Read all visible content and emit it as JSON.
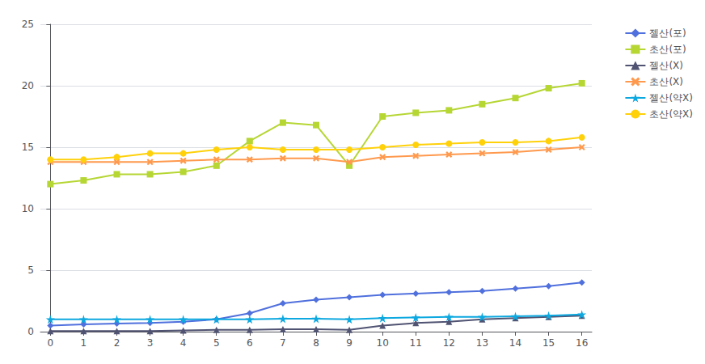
{
  "chart_data": {
    "type": "line",
    "x": [
      0,
      1,
      2,
      3,
      4,
      5,
      6,
      7,
      8,
      9,
      10,
      11,
      12,
      13,
      14,
      15,
      16
    ],
    "series": [
      {
        "name": "젤산(포)",
        "marker": "diamond",
        "values": [
          0.5,
          0.6,
          0.65,
          0.7,
          0.8,
          1.0,
          1.5,
          2.3,
          2.6,
          2.8,
          3.0,
          3.1,
          3.2,
          3.3,
          3.5,
          3.7,
          4.0
        ]
      },
      {
        "name": "초산(포)",
        "marker": "square",
        "values": [
          12.0,
          12.3,
          12.8,
          12.8,
          13.0,
          13.5,
          15.5,
          17.0,
          16.8,
          13.5,
          17.5,
          17.8,
          18.0,
          18.5,
          19.0,
          19.8,
          20.2
        ]
      },
      {
        "name": "젤산(X)",
        "marker": "triangle",
        "values": [
          0.05,
          0.05,
          0.05,
          0.05,
          0.1,
          0.15,
          0.15,
          0.2,
          0.2,
          0.15,
          0.5,
          0.7,
          0.8,
          1.0,
          1.1,
          1.2,
          1.3
        ]
      },
      {
        "name": "초산(X)",
        "marker": "x",
        "values": [
          13.8,
          13.8,
          13.8,
          13.8,
          13.9,
          14.0,
          14.0,
          14.1,
          14.1,
          13.8,
          14.2,
          14.3,
          14.4,
          14.5,
          14.6,
          14.8,
          15.0
        ]
      },
      {
        "name": "젤산(약X)",
        "marker": "star",
        "values": [
          1.0,
          1.0,
          1.0,
          1.0,
          1.0,
          1.0,
          1.0,
          1.05,
          1.05,
          1.0,
          1.1,
          1.15,
          1.2,
          1.2,
          1.25,
          1.3,
          1.4
        ]
      },
      {
        "name": "초산(약X)",
        "marker": "circle",
        "values": [
          14.0,
          14.0,
          14.2,
          14.5,
          14.5,
          14.8,
          15.0,
          14.8,
          14.8,
          14.8,
          15.0,
          15.2,
          15.3,
          15.4,
          15.4,
          15.5,
          15.8
        ]
      }
    ],
    "xlim": [
      -0.3,
      16.3
    ],
    "xticks": [
      0,
      1,
      2,
      3,
      4,
      5,
      6,
      7,
      8,
      9,
      10,
      11,
      12,
      13,
      14,
      15,
      16
    ],
    "ylim": [
      0,
      25
    ],
    "yticks": [
      0,
      5,
      10,
      15,
      20,
      25
    ],
    "grid": true,
    "legend": "right"
  }
}
